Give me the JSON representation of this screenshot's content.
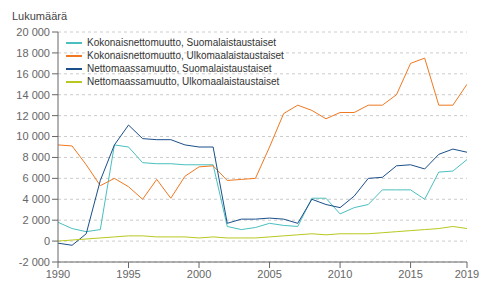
{
  "chart_data": {
    "type": "line",
    "ylabel": "Lukumäärä",
    "x": [
      1990,
      1991,
      1992,
      1993,
      1994,
      1995,
      1996,
      1997,
      1998,
      1999,
      2000,
      2001,
      2002,
      2003,
      2004,
      2005,
      2006,
      2007,
      2008,
      2009,
      2010,
      2011,
      2012,
      2013,
      2014,
      2015,
      2016,
      2017,
      2018,
      2019
    ],
    "series": [
      {
        "name": "Kokonaisnettomuutto, Suomalaistaustaiset",
        "color": "#4bbfbf",
        "values": [
          1800,
          1200,
          900,
          1100,
          9200,
          9000,
          7500,
          7400,
          7400,
          7300,
          7300,
          7300,
          1400,
          1100,
          1300,
          1700,
          1500,
          1400,
          4100,
          4100,
          2600,
          3200,
          3500,
          4900,
          4900,
          4900,
          4000,
          6600,
          6700,
          7800
        ]
      },
      {
        "name": "Kokonaisnettomuutto, Ulkomaalaistaustaiset",
        "color": "#f07820",
        "values": [
          9200,
          9100,
          7300,
          5300,
          6000,
          5200,
          4000,
          5900,
          4100,
          6200,
          7100,
          7200,
          5800,
          5900,
          6000,
          9000,
          12200,
          13000,
          12500,
          11700,
          12300,
          12300,
          13000,
          13000,
          14000,
          17000,
          17500,
          13000,
          13000,
          15000
        ]
      },
      {
        "name": "Nettomaassamuutto, Suomalaistaustaiset",
        "color": "#1a4f8a",
        "values": [
          -200,
          -400,
          700,
          5800,
          9200,
          11100,
          9800,
          9700,
          9700,
          9200,
          9000,
          9000,
          1700,
          2100,
          2100,
          2200,
          2100,
          1700,
          4000,
          3500,
          3200,
          4300,
          6000,
          6100,
          7200,
          7300,
          6900,
          8300,
          8800,
          8500
        ]
      },
      {
        "name": "Nettomaassamuutto, Ulkomaalaistaustaiset",
        "color": "#b8c820",
        "values": [
          0,
          100,
          200,
          300,
          400,
          500,
          500,
          400,
          400,
          400,
          300,
          400,
          300,
          300,
          300,
          400,
          500,
          600,
          700,
          600,
          700,
          700,
          700,
          800,
          900,
          1000,
          1100,
          1200,
          1400,
          1200
        ]
      }
    ],
    "xlim": [
      1990,
      2019
    ],
    "xticks": [
      1990,
      1995,
      2000,
      2005,
      2010,
      2015,
      2019
    ],
    "ylim": [
      -2000,
      20000
    ],
    "yticks": [
      {
        "value": -2000,
        "label": "-2 000"
      },
      0,
      {
        "value": 2000,
        "label": "2 000"
      },
      {
        "value": 4000,
        "label": "4 000"
      },
      {
        "value": 6000,
        "label": "6 000"
      },
      {
        "value": 8000,
        "label": "8 000"
      },
      {
        "value": 10000,
        "label": "10 000"
      },
      {
        "value": 12000,
        "label": "12 000"
      },
      {
        "value": 14000,
        "label": "14 000"
      },
      {
        "value": 16000,
        "label": "16 000"
      },
      {
        "value": 18000,
        "label": "18 000"
      },
      {
        "value": 20000,
        "label": "20 000"
      }
    ],
    "grid": "y",
    "legend": "upper left"
  }
}
